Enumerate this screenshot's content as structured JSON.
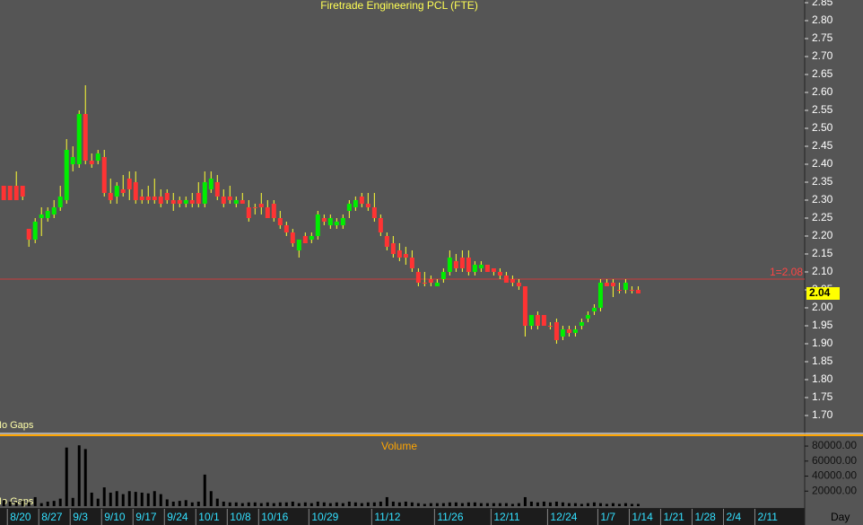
{
  "chart_data": {
    "type": "candlestick",
    "title": "Firetrade Engineering PCL (FTE)",
    "volume_title": "Volume",
    "x_label": "Day",
    "annotations": [
      "No Gaps",
      "No Gaps"
    ],
    "reference_line": {
      "value": 2.08,
      "label": "1=2.08"
    },
    "up_color": "#00ee00",
    "down_color": "#ff3333",
    "wick_color": "#ffff33",
    "volume_color": "#000000",
    "open": [
      2.34,
      2.34,
      2.34,
      2.34,
      2.22,
      2.19,
      2.25,
      2.25,
      2.26,
      2.28,
      2.3,
      2.4,
      2.4,
      2.54,
      2.41,
      2.41,
      2.42,
      2.32,
      2.31,
      2.33,
      2.36,
      2.35,
      2.31,
      2.31,
      2.31,
      2.31,
      2.32,
      2.3,
      2.3,
      2.29,
      2.3,
      2.32,
      2.29,
      2.33,
      2.35,
      2.31,
      2.31,
      2.29,
      2.3,
      2.28,
      2.28,
      2.29,
      2.28,
      2.29,
      2.25,
      2.23,
      2.21,
      2.16,
      2.2,
      2.19,
      2.2,
      2.25,
      2.23,
      2.23,
      2.23,
      2.27,
      2.28,
      2.31,
      2.29,
      2.28,
      2.25,
      2.2,
      2.18,
      2.16,
      2.15,
      2.14,
      2.1,
      2.07,
      2.08,
      2.06,
      2.08,
      2.1,
      2.13,
      2.14,
      2.14,
      2.1,
      2.11,
      2.12,
      2.11,
      2.1,
      2.09,
      2.08,
      2.07,
      2.06,
      1.95,
      1.98,
      1.98,
      1.95,
      1.96,
      1.92,
      1.94,
      1.93,
      1.95,
      1.97,
      1.99,
      2.0,
      2.07,
      2.07,
      2.05,
      2.05,
      2.05,
      2.05
    ],
    "high": [
      2.34,
      2.34,
      2.38,
      2.34,
      2.22,
      2.25,
      2.28,
      2.28,
      2.3,
      2.34,
      2.47,
      2.45,
      2.55,
      2.62,
      2.43,
      2.44,
      2.44,
      2.36,
      2.35,
      2.37,
      2.38,
      2.38,
      2.33,
      2.34,
      2.36,
      2.33,
      2.33,
      2.32,
      2.31,
      2.31,
      2.32,
      2.35,
      2.38,
      2.38,
      2.37,
      2.33,
      2.34,
      2.31,
      2.32,
      2.3,
      2.29,
      2.32,
      2.3,
      2.3,
      2.27,
      2.24,
      2.22,
      2.19,
      2.21,
      2.21,
      2.27,
      2.26,
      2.26,
      2.25,
      2.26,
      2.3,
      2.31,
      2.32,
      2.32,
      2.32,
      2.26,
      2.21,
      2.2,
      2.18,
      2.17,
      2.16,
      2.11,
      2.1,
      2.09,
      2.08,
      2.11,
      2.16,
      2.15,
      2.16,
      2.16,
      2.13,
      2.13,
      2.12,
      2.11,
      2.11,
      2.1,
      2.09,
      2.08,
      2.06,
      1.98,
      1.99,
      1.98,
      1.96,
      1.97,
      1.95,
      1.95,
      1.95,
      1.97,
      1.99,
      2.01,
      2.08,
      2.08,
      2.08,
      2.07,
      2.08,
      2.06,
      2.06
    ],
    "low": [
      2.3,
      2.3,
      2.3,
      2.3,
      2.17,
      2.18,
      2.2,
      2.24,
      2.25,
      2.27,
      2.29,
      2.38,
      2.39,
      2.4,
      2.39,
      2.4,
      2.31,
      2.29,
      2.29,
      2.31,
      2.3,
      2.29,
      2.29,
      2.29,
      2.29,
      2.28,
      2.29,
      2.27,
      2.28,
      2.28,
      2.28,
      2.28,
      2.28,
      2.32,
      2.3,
      2.28,
      2.29,
      2.28,
      2.29,
      2.24,
      2.26,
      2.26,
      2.25,
      2.24,
      2.22,
      2.2,
      2.17,
      2.14,
      2.18,
      2.18,
      2.19,
      2.23,
      2.22,
      2.22,
      2.22,
      2.25,
      2.27,
      2.28,
      2.27,
      2.24,
      2.2,
      2.16,
      2.14,
      2.13,
      2.12,
      2.1,
      2.06,
      2.06,
      2.06,
      2.06,
      2.07,
      2.09,
      2.1,
      2.1,
      2.09,
      2.09,
      2.1,
      2.1,
      2.09,
      2.08,
      2.07,
      2.06,
      2.05,
      1.92,
      1.94,
      1.94,
      1.95,
      1.94,
      1.9,
      1.91,
      1.92,
      1.92,
      1.94,
      1.96,
      1.98,
      1.99,
      2.06,
      2.03,
      2.04,
      2.04,
      2.04,
      2.04
    ],
    "close": [
      2.3,
      2.3,
      2.3,
      2.31,
      2.19,
      2.24,
      2.26,
      2.27,
      2.28,
      2.31,
      2.44,
      2.42,
      2.54,
      2.41,
      2.4,
      2.43,
      2.32,
      2.3,
      2.34,
      2.32,
      2.33,
      2.3,
      2.3,
      2.3,
      2.3,
      2.29,
      2.3,
      2.29,
      2.29,
      2.3,
      2.29,
      2.29,
      2.35,
      2.36,
      2.31,
      2.29,
      2.3,
      2.3,
      2.29,
      2.25,
      2.28,
      2.28,
      2.25,
      2.25,
      2.23,
      2.21,
      2.18,
      2.19,
      2.18,
      2.2,
      2.26,
      2.24,
      2.25,
      2.24,
      2.25,
      2.29,
      2.3,
      2.29,
      2.28,
      2.25,
      2.21,
      2.17,
      2.15,
      2.14,
      2.14,
      2.11,
      2.07,
      2.07,
      2.07,
      2.07,
      2.1,
      2.14,
      2.11,
      2.11,
      2.1,
      2.12,
      2.12,
      2.1,
      2.1,
      2.09,
      2.07,
      2.07,
      2.06,
      1.95,
      1.98,
      1.95,
      1.95,
      1.95,
      1.91,
      1.94,
      1.93,
      1.94,
      1.96,
      1.98,
      2.0,
      2.07,
      2.06,
      2.06,
      2.05,
      2.07,
      2.05,
      2.04
    ],
    "volume": [
      8000,
      6000,
      5000,
      7000,
      5000,
      12000,
      4000,
      6000,
      7000,
      10000,
      78000,
      11000,
      81000,
      76000,
      18000,
      10000,
      25000,
      18000,
      20000,
      16000,
      20000,
      19000,
      18000,
      17000,
      20000,
      16000,
      9000,
      6000,
      7000,
      8000,
      5000,
      6000,
      42000,
      20000,
      10000,
      6000,
      5000,
      5000,
      4000,
      5000,
      5000,
      4000,
      5000,
      4000,
      5000,
      5000,
      6000,
      4000,
      5000,
      4000,
      6000,
      5000,
      4000,
      5000,
      4000,
      6000,
      5000,
      4000,
      5000,
      5000,
      6000,
      12000,
      6000,
      5000,
      6000,
      5000,
      4000,
      3000,
      4000,
      4000,
      4000,
      5000,
      5000,
      4000,
      5000,
      5000,
      4000,
      4000,
      4000,
      4000,
      4000,
      3000,
      4000,
      12000,
      6000,
      5000,
      6000,
      5000,
      6000,
      5000,
      4000,
      4000,
      3000,
      4000,
      5000,
      4000,
      3000,
      4000,
      3000,
      4000,
      3000,
      3000
    ],
    "xlim": [
      -0.6,
      127.5
    ],
    "xticks": [
      {
        "value": 1,
        "label": "8/20"
      },
      {
        "value": 6,
        "label": "8/27"
      },
      {
        "value": 11,
        "label": "9/3"
      },
      {
        "value": 16,
        "label": "9/10"
      },
      {
        "value": 21,
        "label": "9/17"
      },
      {
        "value": 26,
        "label": "9/24"
      },
      {
        "value": 31,
        "label": "10/1"
      },
      {
        "value": 36,
        "label": "10/8"
      },
      {
        "value": 41,
        "label": "10/16"
      },
      {
        "value": 49,
        "label": "10/29"
      },
      {
        "value": 59,
        "label": "11/12"
      },
      {
        "value": 69,
        "label": "11/26"
      },
      {
        "value": 78,
        "label": "12/11"
      },
      {
        "value": 87,
        "label": "12/24"
      },
      {
        "value": 95,
        "label": "1/7"
      },
      {
        "value": 100,
        "label": "1/14"
      },
      {
        "value": 105,
        "label": "1/21"
      },
      {
        "value": 110,
        "label": "1/28"
      },
      {
        "value": 115,
        "label": "2/4"
      },
      {
        "value": 120,
        "label": "2/11"
      }
    ],
    "ylim": [
      1.6525,
      2.8575
    ],
    "yticks": [
      2.85,
      {
        "value": 2.8,
        "label": "2.80"
      },
      2.75,
      {
        "value": 2.7,
        "label": "2.70"
      },
      2.65,
      {
        "value": 2.6,
        "label": "2.60"
      },
      2.55,
      {
        "value": 2.5,
        "label": "2.50"
      },
      2.45,
      {
        "value": 2.4,
        "label": "2.40"
      },
      2.35,
      {
        "value": 2.3,
        "label": "2.30"
      },
      2.25,
      {
        "value": 2.2,
        "label": "2.20"
      },
      2.15,
      {
        "value": 2.1,
        "label": "2.10"
      },
      2.05,
      {
        "value": 2,
        "label": "2.00"
      },
      1.95,
      {
        "value": 1.9,
        "label": "1.90"
      },
      1.85,
      {
        "value": 1.8,
        "label": "1.80"
      },
      1.75,
      {
        "value": 1.7,
        "label": "1.70"
      }
    ],
    "volume_ylim": [
      0,
      92000
    ],
    "volume_yticks": [
      {
        "value": 80000,
        "label": "80000.00"
      },
      {
        "value": 60000,
        "label": "60000.00"
      },
      {
        "value": 40000,
        "label": "40000.00"
      },
      {
        "value": 20000,
        "label": "20000.00"
      }
    ]
  }
}
